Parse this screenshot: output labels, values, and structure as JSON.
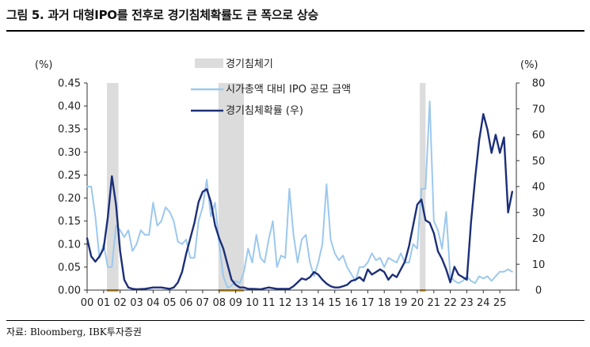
{
  "figure": {
    "title": "그림 5.  과거 대형IPO를 전후로 경기침체확률도 큰 폭으로 상승",
    "source": "자료: Bloomberg, IBK투자증권"
  },
  "chart_data": {
    "type": "line",
    "left_unit": "(%)",
    "right_unit": "(%)",
    "left_axis": {
      "min": 0,
      "max": 0.45,
      "ticks": [
        "0.00",
        "0.05",
        "0.10",
        "0.15",
        "0.20",
        "0.25",
        "0.30",
        "0.35",
        "0.40",
        "0.45"
      ]
    },
    "right_axis": {
      "min": 0,
      "max": 80,
      "ticks": [
        "0",
        "10",
        "20",
        "30",
        "40",
        "50",
        "60",
        "70",
        "80"
      ]
    },
    "x_axis": {
      "start": 2000,
      "end": 2026,
      "tick_labels": [
        "00",
        "01",
        "02",
        "03",
        "04",
        "05",
        "06",
        "07",
        "08",
        "09",
        "10",
        "11",
        "12",
        "13",
        "14",
        "15",
        "16",
        "17",
        "18",
        "19",
        "20",
        "21",
        "22",
        "23",
        "24",
        "25"
      ]
    },
    "legend": {
      "recession": "경기침체기",
      "ipo": "시가총액 대비 IPO 공모 금액",
      "prob": "경기침체확률 (우)"
    },
    "recessions": [
      [
        2001.2,
        2001.9
      ],
      [
        2007.95,
        2009.5
      ],
      [
        2020.15,
        2020.5
      ]
    ],
    "series": [
      {
        "name": "시가총액 대비 IPO 공모 금액",
        "axis": "left",
        "color": "#9cc8ee",
        "x": [
          2000.0,
          2000.25,
          2000.5,
          2000.75,
          2001.0,
          2001.25,
          2001.5,
          2001.75,
          2002.0,
          2002.25,
          2002.5,
          2002.75,
          2003.0,
          2003.25,
          2003.5,
          2003.75,
          2004.0,
          2004.25,
          2004.5,
          2004.75,
          2005.0,
          2005.25,
          2005.5,
          2005.75,
          2006.0,
          2006.25,
          2006.5,
          2006.75,
          2007.0,
          2007.25,
          2007.5,
          2007.75,
          2008.0,
          2008.25,
          2008.5,
          2008.75,
          2009.0,
          2009.25,
          2009.5,
          2009.75,
          2010.0,
          2010.25,
          2010.5,
          2010.75,
          2011.0,
          2011.25,
          2011.5,
          2011.75,
          2012.0,
          2012.25,
          2012.5,
          2012.75,
          2013.0,
          2013.25,
          2013.5,
          2013.75,
          2014.0,
          2014.25,
          2014.5,
          2014.75,
          2015.0,
          2015.25,
          2015.5,
          2015.75,
          2016.0,
          2016.25,
          2016.5,
          2016.75,
          2017.0,
          2017.25,
          2017.5,
          2017.75,
          2018.0,
          2018.25,
          2018.5,
          2018.75,
          2019.0,
          2019.25,
          2019.5,
          2019.75,
          2020.0,
          2020.25,
          2020.5,
          2020.75,
          2021.0,
          2021.25,
          2021.5,
          2021.75,
          2022.0,
          2022.25,
          2022.5,
          2022.75,
          2023.0,
          2023.25,
          2023.5,
          2023.75,
          2024.0,
          2024.25,
          2024.5,
          2024.75,
          2025.0,
          2025.25,
          2025.5,
          2025.75
        ],
        "values": [
          0.225,
          0.225,
          0.16,
          0.07,
          0.1,
          0.05,
          0.05,
          0.14,
          0.13,
          0.115,
          0.13,
          0.085,
          0.1,
          0.13,
          0.12,
          0.12,
          0.19,
          0.14,
          0.15,
          0.18,
          0.17,
          0.15,
          0.105,
          0.1,
          0.11,
          0.07,
          0.07,
          0.15,
          0.18,
          0.24,
          0.16,
          0.19,
          0.1,
          0.03,
          0.005,
          0.01,
          0.02,
          0.015,
          0.04,
          0.09,
          0.06,
          0.12,
          0.07,
          0.06,
          0.11,
          0.15,
          0.05,
          0.075,
          0.07,
          0.22,
          0.12,
          0.06,
          0.11,
          0.12,
          0.06,
          0.03,
          0.06,
          0.1,
          0.23,
          0.11,
          0.08,
          0.065,
          0.075,
          0.05,
          0.035,
          0.02,
          0.05,
          0.05,
          0.06,
          0.08,
          0.065,
          0.07,
          0.05,
          0.07,
          0.065,
          0.06,
          0.08,
          0.06,
          0.06,
          0.1,
          0.09,
          0.22,
          0.22,
          0.41,
          0.15,
          0.13,
          0.09,
          0.17,
          0.03,
          0.02,
          0.015,
          0.02,
          0.03,
          0.02,
          0.015,
          0.03,
          0.025,
          0.03,
          0.02,
          0.03,
          0.04,
          0.04,
          0.045,
          0.04
        ]
      },
      {
        "name": "경기침체확률 (우)",
        "axis": "right",
        "color": "#1c2f78",
        "x": [
          2000.0,
          2000.25,
          2000.5,
          2000.75,
          2001.0,
          2001.25,
          2001.5,
          2001.75,
          2002.0,
          2002.25,
          2002.5,
          2002.75,
          2003.0,
          2003.5,
          2004.0,
          2004.5,
          2005.0,
          2005.25,
          2005.5,
          2005.75,
          2006.0,
          2006.25,
          2006.5,
          2006.75,
          2007.0,
          2007.25,
          2007.5,
          2007.75,
          2008.0,
          2008.25,
          2008.5,
          2008.75,
          2009.0,
          2009.25,
          2009.5,
          2009.75,
          2010.0,
          2010.5,
          2011.0,
          2011.5,
          2012.0,
          2012.25,
          2012.5,
          2012.75,
          2013.0,
          2013.25,
          2013.5,
          2013.75,
          2014.0,
          2014.25,
          2014.5,
          2014.75,
          2015.0,
          2015.25,
          2015.5,
          2015.75,
          2016.0,
          2016.25,
          2016.5,
          2016.75,
          2017.0,
          2017.25,
          2017.5,
          2017.75,
          2018.0,
          2018.25,
          2018.5,
          2018.75,
          2019.0,
          2019.25,
          2019.5,
          2019.75,
          2020.0,
          2020.25,
          2020.5,
          2020.75,
          2021.0,
          2021.25,
          2021.5,
          2021.75,
          2022.0,
          2022.25,
          2022.5,
          2022.75,
          2023.0,
          2023.25,
          2023.5,
          2023.75,
          2024.0,
          2024.25,
          2024.5,
          2024.75,
          2025.0,
          2025.25,
          2025.5,
          2025.75
        ],
        "values": [
          20,
          13,
          11,
          13,
          16,
          28,
          44,
          33,
          15,
          4,
          1,
          0.5,
          0.3,
          0.5,
          1,
          1,
          0.5,
          1,
          3,
          7,
          14,
          20,
          26,
          34,
          38,
          39,
          34,
          25,
          20,
          16,
          10,
          4,
          2,
          1,
          1,
          0.5,
          0.5,
          0.3,
          1,
          0.5,
          0.5,
          0.5,
          1.5,
          3,
          4.5,
          4,
          5,
          7,
          6,
          4,
          2.5,
          1.5,
          1,
          1,
          1.5,
          2,
          3.5,
          4,
          5,
          3.5,
          8,
          6,
          7,
          8,
          7,
          4,
          6,
          5,
          8,
          11,
          17,
          25,
          33,
          35,
          27,
          26,
          22,
          15,
          12,
          8,
          3,
          9,
          6,
          5,
          4,
          26,
          43,
          58,
          68,
          62,
          53,
          60,
          53,
          59,
          30,
          38
        ]
      }
    ]
  }
}
